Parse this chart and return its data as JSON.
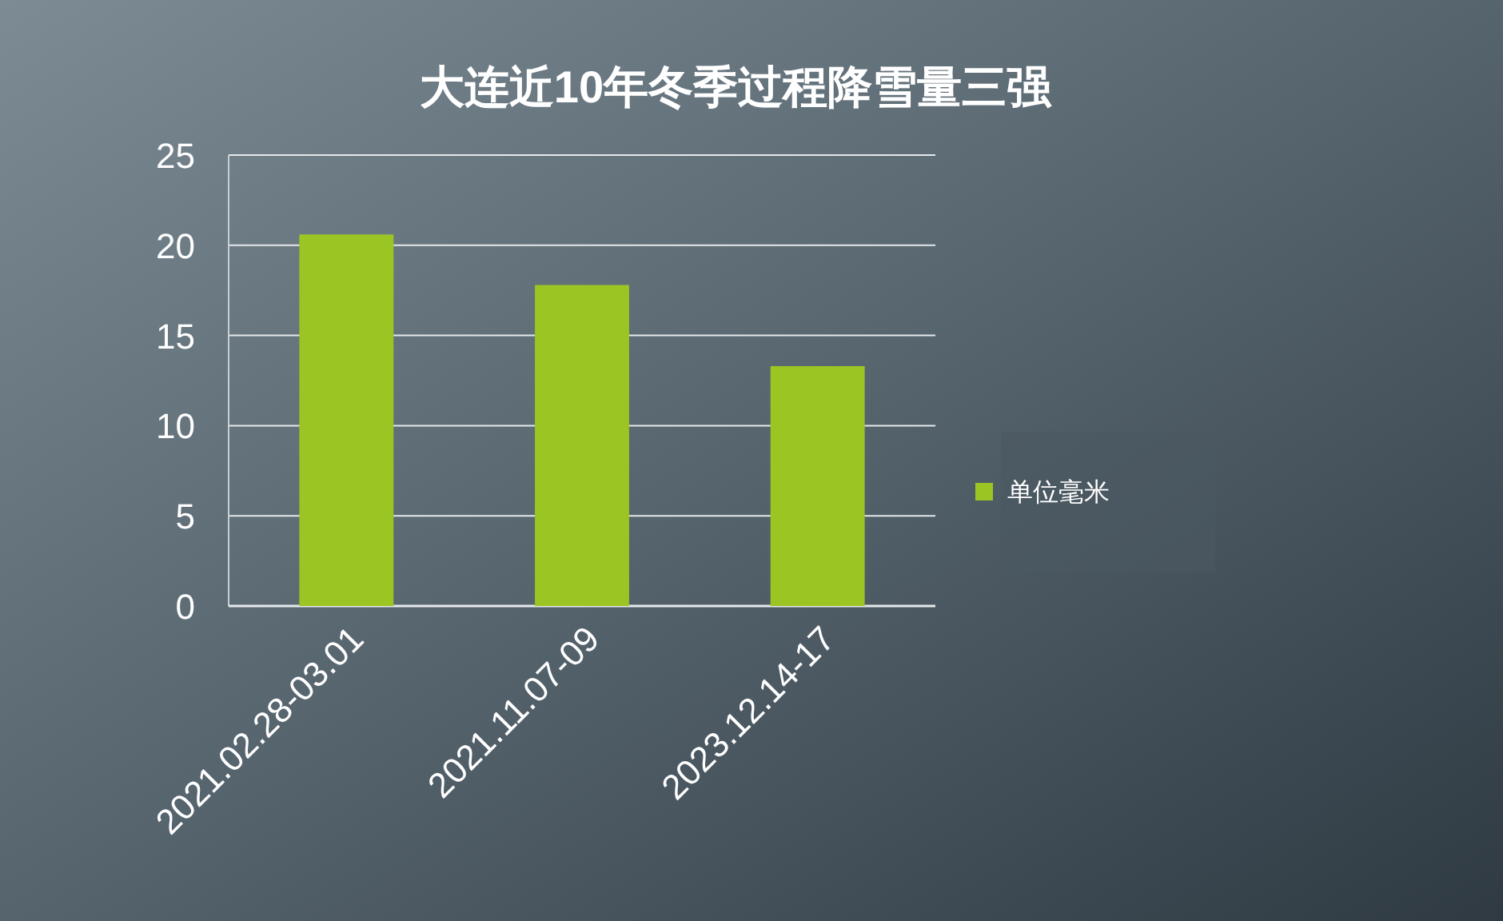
{
  "chart_data": {
    "type": "bar",
    "title": "大连近10年冬季过程降雪量三强",
    "categories": [
      "2021.02.28-03.01",
      "2021.11.07-09",
      "2023.12.14-17"
    ],
    "series": [
      {
        "name": "单位毫米",
        "color": "#9bc523",
        "values": [
          20.6,
          17.8,
          13.3
        ]
      }
    ],
    "ylim": [
      0,
      25
    ],
    "yticks": [
      0,
      5,
      10,
      15,
      20,
      25
    ],
    "grid": "y",
    "legend": "right"
  }
}
